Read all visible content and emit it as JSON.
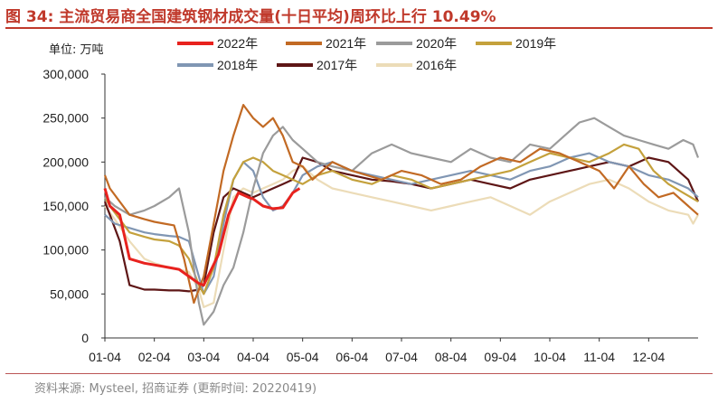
{
  "header": {
    "title": "图 34: 主流贸易商全国建筑钢材成交量(十日平均)周环比上行 10.49%",
    "unit": "单位: 万吨"
  },
  "footer": {
    "source": "资料来源: Mysteel, 招商证券 (更新时间: 20220419)"
  },
  "colors": {
    "2022": "#e8221e",
    "2021": "#c26a24",
    "2020": "#9b9b9b",
    "2019": "#c4a13c",
    "2018": "#8096b3",
    "2017": "#5e1616",
    "2016": "#ecdcb8",
    "title": "#c0392b"
  },
  "chart_data": {
    "type": "line",
    "title": "主流贸易商全国建筑钢材成交量(十日平均)周环比上行 10.49%",
    "ylabel": "万吨",
    "xlabel": "",
    "ylim": [
      0,
      300000
    ],
    "yticks": [
      0,
      50000,
      100000,
      150000,
      200000,
      250000,
      300000
    ],
    "ytick_labels": [
      "0",
      "50,000",
      "100,000",
      "150,000",
      "200,000",
      "250,000",
      "300,000"
    ],
    "xlim": [
      0,
      12
    ],
    "xticks": [
      0,
      1,
      2,
      3,
      4,
      5,
      6,
      7,
      8,
      9,
      10,
      11
    ],
    "xtick_labels": [
      "01-04",
      "02-04",
      "03-04",
      "04-04",
      "05-04",
      "06-04",
      "07-04",
      "08-04",
      "09-04",
      "10-04",
      "11-04",
      "12-04"
    ],
    "legend_position": "top",
    "series": [
      {
        "name": "2022年",
        "key": "2022",
        "x": [
          0,
          0.1,
          0.3,
          0.5,
          0.8,
          1.0,
          1.3,
          1.5,
          1.7,
          1.9,
          2.0,
          2.3,
          2.5,
          2.7,
          2.9,
          3.0,
          3.2,
          3.4,
          3.6,
          3.8,
          3.94
        ],
        "values": [
          170000,
          150000,
          140000,
          90000,
          85000,
          83000,
          80000,
          78000,
          70000,
          62000,
          60000,
          95000,
          140000,
          165000,
          160000,
          158000,
          150000,
          147000,
          148000,
          165000,
          170000
        ]
      },
      {
        "name": "2021年",
        "key": "2021",
        "x": [
          0,
          0.1,
          0.3,
          0.5,
          0.8,
          1.0,
          1.2,
          1.4,
          1.6,
          1.8,
          2.0,
          2.2,
          2.4,
          2.6,
          2.8,
          3.0,
          3.2,
          3.4,
          3.6,
          3.8,
          4.0,
          4.2,
          4.4,
          4.6,
          4.8,
          5.0,
          5.3,
          5.6,
          6.0,
          6.4,
          6.8,
          7.2,
          7.6,
          8.0,
          8.4,
          8.8,
          9.2,
          9.6,
          10.0,
          10.3,
          10.6,
          10.9,
          11.2,
          11.5,
          11.8,
          12.0
        ],
        "values": [
          185000,
          170000,
          155000,
          140000,
          135000,
          132000,
          130000,
          128000,
          90000,
          40000,
          70000,
          130000,
          190000,
          230000,
          265000,
          250000,
          240000,
          250000,
          230000,
          200000,
          195000,
          180000,
          190000,
          200000,
          195000,
          190000,
          185000,
          180000,
          190000,
          185000,
          175000,
          180000,
          195000,
          205000,
          200000,
          215000,
          210000,
          200000,
          190000,
          170000,
          195000,
          175000,
          160000,
          165000,
          150000,
          140000
        ]
      },
      {
        "name": "2020年",
        "key": "2020",
        "x": [
          0,
          0.2,
          0.5,
          0.8,
          1.0,
          1.3,
          1.5,
          1.7,
          1.9,
          2.0,
          2.2,
          2.4,
          2.6,
          2.8,
          3.0,
          3.2,
          3.4,
          3.6,
          3.8,
          4.0,
          4.3,
          4.6,
          5.0,
          5.4,
          5.8,
          6.2,
          6.6,
          7.0,
          7.4,
          7.8,
          8.2,
          8.6,
          9.0,
          9.3,
          9.6,
          9.9,
          10.2,
          10.5,
          10.8,
          11.1,
          11.4,
          11.7,
          11.9,
          12.0
        ],
        "values": [
          160000,
          150000,
          140000,
          145000,
          150000,
          160000,
          170000,
          120000,
          40000,
          15000,
          30000,
          60000,
          80000,
          120000,
          170000,
          210000,
          230000,
          240000,
          225000,
          215000,
          200000,
          195000,
          190000,
          210000,
          220000,
          210000,
          205000,
          200000,
          215000,
          205000,
          200000,
          220000,
          215000,
          230000,
          245000,
          250000,
          240000,
          230000,
          225000,
          220000,
          215000,
          225000,
          220000,
          205000
        ]
      },
      {
        "name": "2019年",
        "key": "2019",
        "x": [
          0,
          0.1,
          0.3,
          0.5,
          0.8,
          1.0,
          1.3,
          1.5,
          1.7,
          1.9,
          2.0,
          2.2,
          2.4,
          2.6,
          2.8,
          3.0,
          3.2,
          3.4,
          3.6,
          3.8,
          4.0,
          4.3,
          4.6,
          5.0,
          5.4,
          5.8,
          6.2,
          6.6,
          7.0,
          7.4,
          7.8,
          8.2,
          8.6,
          9.0,
          9.4,
          9.8,
          10.2,
          10.5,
          10.8,
          11.1,
          11.4,
          11.7,
          12.0
        ],
        "values": [
          160000,
          150000,
          135000,
          120000,
          115000,
          112000,
          110000,
          105000,
          90000,
          60000,
          50000,
          80000,
          140000,
          180000,
          200000,
          205000,
          200000,
          190000,
          185000,
          180000,
          175000,
          185000,
          190000,
          180000,
          175000,
          185000,
          180000,
          170000,
          175000,
          180000,
          185000,
          190000,
          200000,
          210000,
          205000,
          200000,
          210000,
          220000,
          215000,
          190000,
          175000,
          165000,
          155000
        ]
      },
      {
        "name": "2018年",
        "key": "2018",
        "x": [
          0,
          0.2,
          0.5,
          0.8,
          1.0,
          1.3,
          1.5,
          1.7,
          1.9,
          2.0,
          2.2,
          2.4,
          2.6,
          2.8,
          3.0,
          3.2,
          3.4,
          3.6,
          3.8,
          4.0,
          4.3,
          4.6,
          5.0,
          5.4,
          5.8,
          6.2,
          6.6,
          7.0,
          7.4,
          7.8,
          8.2,
          8.6,
          9.0,
          9.4,
          9.8,
          10.2,
          10.6,
          11.0,
          11.4,
          11.8,
          12.0
        ],
        "values": [
          140000,
          130000,
          125000,
          120000,
          118000,
          116000,
          115000,
          110000,
          70000,
          50000,
          70000,
          130000,
          180000,
          200000,
          190000,
          160000,
          145000,
          150000,
          165000,
          185000,
          195000,
          200000,
          190000,
          185000,
          180000,
          175000,
          180000,
          185000,
          190000,
          185000,
          180000,
          190000,
          195000,
          205000,
          210000,
          200000,
          195000,
          185000,
          180000,
          170000,
          160000
        ]
      },
      {
        "name": "2017年",
        "key": "2017",
        "x": [
          0,
          0.1,
          0.3,
          0.5,
          0.8,
          1.0,
          1.3,
          1.5,
          1.7,
          1.9,
          2.0,
          2.2,
          2.4,
          2.6,
          2.8,
          3.0,
          3.2,
          3.4,
          3.6,
          3.8,
          4.0,
          4.3,
          4.6,
          5.0,
          5.4,
          5.8,
          6.2,
          6.6,
          7.0,
          7.4,
          7.8,
          8.2,
          8.6,
          9.0,
          9.4,
          9.8,
          10.2,
          10.6,
          11.0,
          11.4,
          11.8,
          12.0
        ],
        "values": [
          155000,
          140000,
          110000,
          60000,
          55000,
          55000,
          54000,
          54000,
          53000,
          55000,
          60000,
          120000,
          160000,
          170000,
          165000,
          160000,
          165000,
          170000,
          175000,
          180000,
          205000,
          200000,
          190000,
          185000,
          180000,
          178000,
          175000,
          170000,
          175000,
          180000,
          175000,
          170000,
          180000,
          185000,
          190000,
          195000,
          200000,
          195000,
          205000,
          200000,
          180000,
          155000
        ]
      },
      {
        "name": "2016年",
        "key": "2016",
        "x": [
          0,
          0.2,
          0.5,
          0.8,
          1.0,
          1.3,
          1.5,
          1.7,
          1.9,
          2.0,
          2.2,
          2.4,
          2.6,
          2.8,
          3.0,
          3.2,
          3.4,
          3.6,
          3.8,
          4.0,
          4.3,
          4.6,
          5.0,
          5.4,
          5.8,
          6.2,
          6.6,
          7.0,
          7.4,
          7.8,
          8.2,
          8.6,
          9.0,
          9.4,
          9.8,
          10.2,
          10.6,
          11.0,
          11.4,
          11.8,
          11.9,
          12.0
        ],
        "values": [
          150000,
          135000,
          110000,
          90000,
          85000,
          80000,
          78000,
          75000,
          55000,
          35000,
          40000,
          100000,
          160000,
          170000,
          165000,
          170000,
          175000,
          180000,
          190000,
          195000,
          180000,
          170000,
          165000,
          160000,
          155000,
          150000,
          145000,
          150000,
          155000,
          160000,
          150000,
          140000,
          155000,
          165000,
          175000,
          180000,
          170000,
          155000,
          145000,
          140000,
          130000,
          140000
        ]
      }
    ]
  }
}
